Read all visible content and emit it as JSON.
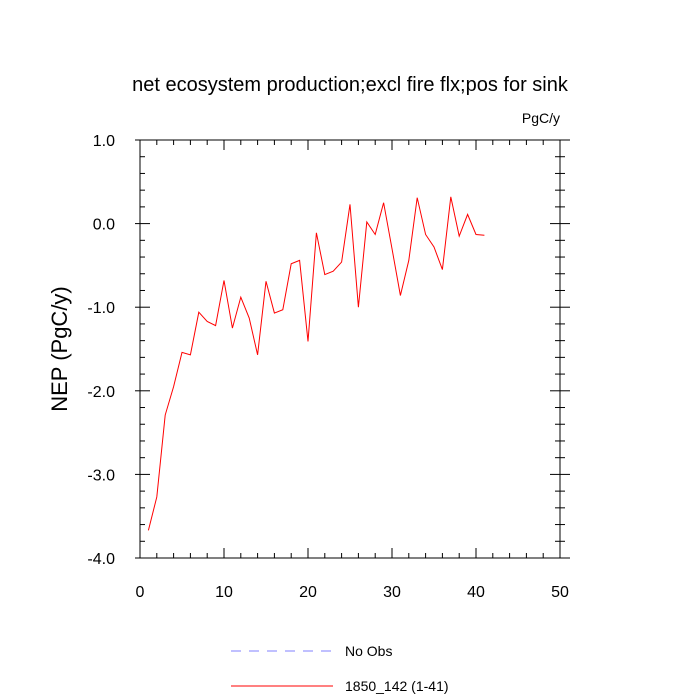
{
  "chart_data": {
    "type": "line",
    "title": "net ecosystem production;excl fire flx;pos for sink",
    "units": "PgC/y",
    "xlabel": "",
    "ylabel": "NEP  (PgC/y)",
    "xlim": [
      0,
      50
    ],
    "ylim": [
      -4.0,
      1.0
    ],
    "x_ticks": [
      0,
      10,
      20,
      30,
      40,
      50
    ],
    "x_tick_labels": [
      "0",
      "10",
      "20",
      "30",
      "40",
      "50"
    ],
    "y_ticks": [
      1.0,
      0.0,
      -1.0,
      -2.0,
      -3.0,
      -4.0
    ],
    "y_tick_labels": [
      "1.0",
      "0.0",
      "-1.0",
      "-2.0",
      "-3.0",
      "-4.0"
    ],
    "grid": false,
    "legend_position": "bottom-center",
    "series": [
      {
        "name": "No Obs",
        "style": "dashed",
        "color": "#8080ff",
        "x": [],
        "y": []
      },
      {
        "name": "1850_142 (1-41)",
        "style": "solid",
        "color": "#ff0000",
        "x": [
          1,
          2,
          3,
          4,
          5,
          6,
          7,
          8,
          9,
          10,
          11,
          12,
          13,
          14,
          15,
          16,
          17,
          18,
          19,
          20,
          21,
          22,
          23,
          24,
          25,
          26,
          27,
          28,
          29,
          30,
          31,
          32,
          33,
          34,
          35,
          36,
          37,
          38,
          39,
          40,
          41
        ],
        "y": [
          -3.67,
          -3.27,
          -2.29,
          -1.95,
          -1.54,
          -1.57,
          -1.06,
          -1.17,
          -1.22,
          -0.68,
          -1.25,
          -0.88,
          -1.13,
          -1.57,
          -0.69,
          -1.07,
          -1.03,
          -0.48,
          -0.44,
          -1.41,
          -0.11,
          -0.61,
          -0.57,
          -0.46,
          0.23,
          -1.0,
          0.02,
          -0.13,
          0.25,
          -0.3,
          -0.86,
          -0.44,
          0.31,
          -0.13,
          -0.28,
          -0.55,
          0.32,
          -0.15,
          0.11,
          -0.13,
          -0.14
        ]
      }
    ]
  }
}
